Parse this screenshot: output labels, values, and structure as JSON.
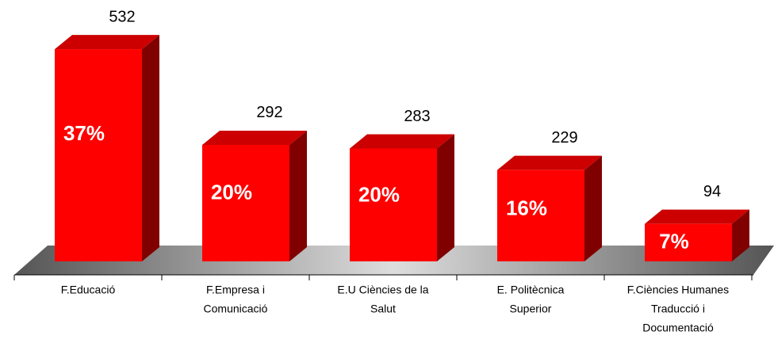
{
  "chart_data": {
    "type": "bar3d",
    "categories": [
      [
        "F.Educació"
      ],
      [
        "F.Empresa i",
        "Comunicació"
      ],
      [
        "E.U Ciències de la",
        "Salut"
      ],
      [
        "E. Politècnica",
        "Superior"
      ],
      [
        "F.Ciències Humanes",
        "Traducció i",
        "Documentació"
      ]
    ],
    "values": [
      532,
      292,
      283,
      229,
      94
    ],
    "share_labels": [
      "37%",
      "20%",
      "20%",
      "16%",
      "7%"
    ],
    "color": "#ff0000",
    "ylim": [
      0,
      550
    ]
  }
}
